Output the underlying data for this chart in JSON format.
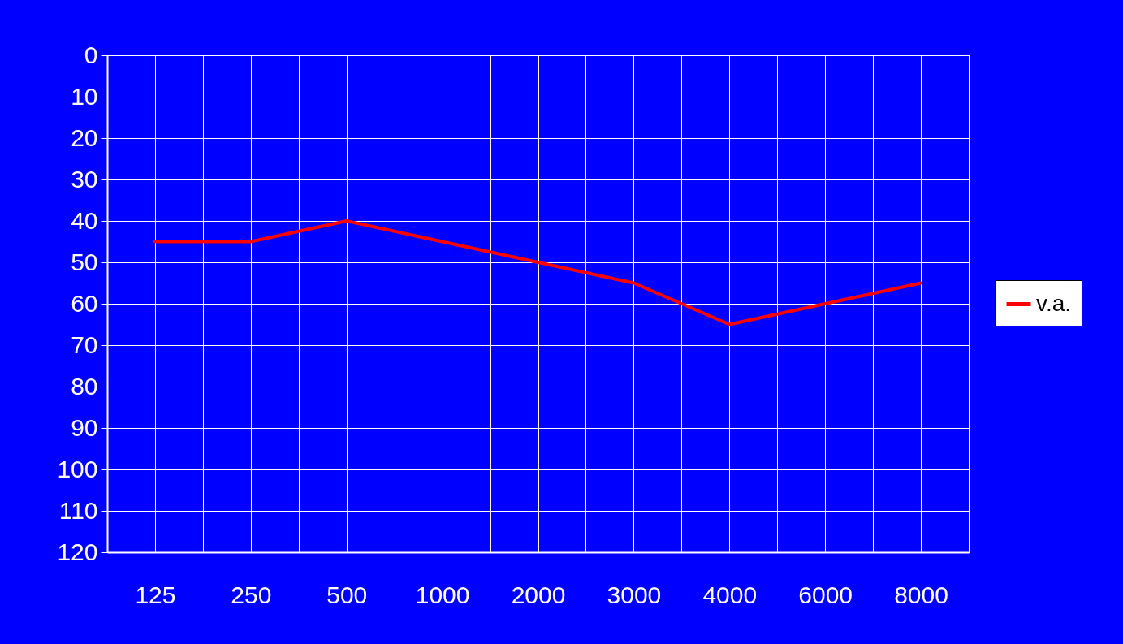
{
  "chart_data": {
    "type": "line",
    "categories": [
      "125",
      "250",
      "500",
      "1000",
      "2000",
      "3000",
      "4000",
      "6000",
      "8000"
    ],
    "series": [
      {
        "name": "v.a.",
        "color": "#ff0000",
        "values": [
          45,
          45,
          40,
          45,
          50,
          55,
          65,
          60,
          55
        ]
      }
    ],
    "ylim": [
      120,
      0
    ],
    "yticks": [
      0,
      10,
      20,
      30,
      40,
      50,
      60,
      70,
      80,
      90,
      100,
      110,
      120
    ],
    "grid": true,
    "legend": "right",
    "marker": "none",
    "line_style": "solid"
  }
}
